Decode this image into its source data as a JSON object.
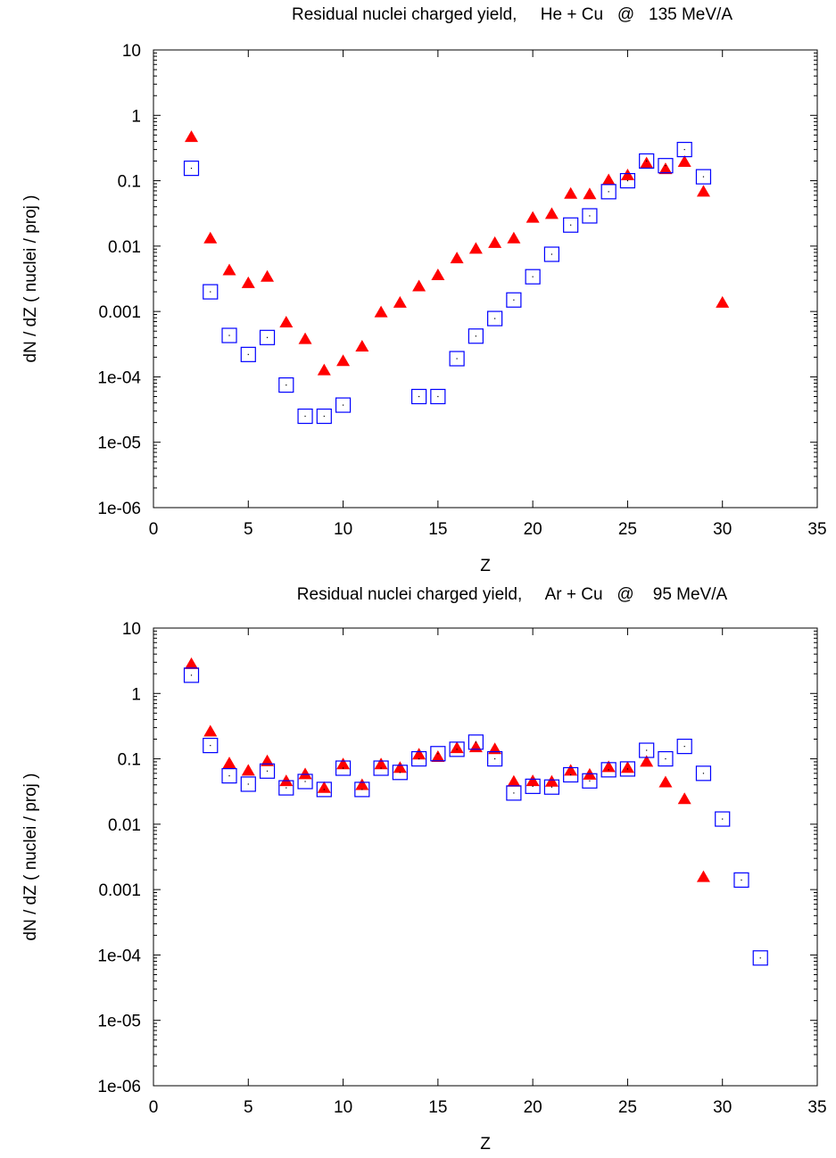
{
  "chart_data": [
    {
      "type": "scatter",
      "title": "Residual nuclei charged yield,     He + Cu   @   135 MeV/A",
      "xlabel": "Z",
      "ylabel": "dN / dZ ( nuclei / proj )",
      "xlim": [
        0,
        35
      ],
      "ylim": [
        1e-06,
        10
      ],
      "yscale": "log",
      "grid": false,
      "legend": "none",
      "x_ticks": [
        "0",
        "5",
        "10",
        "15",
        "20",
        "25",
        "30",
        "35"
      ],
      "x_tick_values": [
        0,
        5,
        10,
        15,
        20,
        25,
        30,
        35
      ],
      "y_ticks": [
        "1e-06",
        "1e-05",
        "1e-04",
        "0.001",
        "0.01",
        "0.1",
        "1",
        "10"
      ],
      "y_tick_values": [
        1e-06,
        1e-05,
        0.0001,
        0.001,
        0.01,
        0.1,
        1,
        10
      ],
      "series": [
        {
          "marker": "filled-triangle",
          "color": "#ff0000",
          "points": [
            [
              2,
              0.48
            ],
            [
              3,
              0.0135
            ],
            [
              4,
              0.0044
            ],
            [
              5,
              0.0028
            ],
            [
              6,
              0.0035
            ],
            [
              7,
              0.0007
            ],
            [
              8,
              0.00039
            ],
            [
              9,
              0.00013
            ],
            [
              10,
              0.00018
            ],
            [
              11,
              0.0003
            ],
            [
              12,
              0.001
            ],
            [
              13,
              0.0014
            ],
            [
              14,
              0.0025
            ],
            [
              15,
              0.0037
            ],
            [
              16,
              0.0067
            ],
            [
              17,
              0.0094
            ],
            [
              18,
              0.0115
            ],
            [
              19,
              0.0135
            ],
            [
              20,
              0.028
            ],
            [
              21,
              0.032
            ],
            [
              22,
              0.065
            ],
            [
              23,
              0.064
            ],
            [
              24,
              0.105
            ],
            [
              25,
              0.125
            ],
            [
              26,
              0.19
            ],
            [
              27,
              0.155
            ],
            [
              28,
              0.2
            ],
            [
              29,
              0.07
            ],
            [
              30,
              0.0014
            ]
          ]
        },
        {
          "marker": "open-square",
          "color": "#0000ff",
          "points": [
            [
              2,
              0.155
            ],
            [
              3,
              0.002
            ],
            [
              4,
              0.00043
            ],
            [
              5,
              0.00022
            ],
            [
              6,
              0.0004
            ],
            [
              7,
              7.5e-05
            ],
            [
              8,
              2.5e-05
            ],
            [
              9,
              2.5e-05
            ],
            [
              10,
              3.7e-05
            ],
            [
              14,
              5e-05
            ],
            [
              15,
              5e-05
            ],
            [
              16,
              0.00019
            ],
            [
              17,
              0.00042
            ],
            [
              18,
              0.00078
            ],
            [
              19,
              0.0015
            ],
            [
              20,
              0.0034
            ],
            [
              21,
              0.0075
            ],
            [
              22,
              0.021
            ],
            [
              23,
              0.029
            ],
            [
              24,
              0.068
            ],
            [
              25,
              0.1
            ],
            [
              26,
              0.2
            ],
            [
              27,
              0.17
            ],
            [
              28,
              0.3
            ],
            [
              29,
              0.115
            ]
          ]
        }
      ]
    },
    {
      "type": "scatter",
      "title": "Residual nuclei charged yield,     Ar + Cu   @    95 MeV/A",
      "xlabel": "Z",
      "ylabel": "dN / dZ ( nuclei / proj )",
      "xlim": [
        0,
        35
      ],
      "ylim": [
        1e-06,
        10
      ],
      "yscale": "log",
      "grid": false,
      "legend": "none",
      "x_ticks": [
        "0",
        "5",
        "10",
        "15",
        "20",
        "25",
        "30",
        "35"
      ],
      "x_tick_values": [
        0,
        5,
        10,
        15,
        20,
        25,
        30,
        35
      ],
      "y_ticks": [
        "1e-06",
        "1e-05",
        "1e-04",
        "0.001",
        "0.01",
        "0.1",
        "1",
        "10"
      ],
      "y_tick_values": [
        1e-06,
        1e-05,
        0.0001,
        0.001,
        0.01,
        0.1,
        1,
        10
      ],
      "series": [
        {
          "marker": "filled-triangle",
          "color": "#ff0000",
          "points": [
            [
              2,
              2.9
            ],
            [
              3,
              0.27
            ],
            [
              4,
              0.088
            ],
            [
              5,
              0.068
            ],
            [
              6,
              0.095
            ],
            [
              7,
              0.047
            ],
            [
              8,
              0.06
            ],
            [
              9,
              0.037
            ],
            [
              10,
              0.085
            ],
            [
              11,
              0.041
            ],
            [
              12,
              0.085
            ],
            [
              13,
              0.075
            ],
            [
              14,
              0.12
            ],
            [
              15,
              0.11
            ],
            [
              16,
              0.15
            ],
            [
              17,
              0.155
            ],
            [
              18,
              0.145
            ],
            [
              19,
              0.046
            ],
            [
              20,
              0.047
            ],
            [
              21,
              0.046
            ],
            [
              22,
              0.068
            ],
            [
              23,
              0.059
            ],
            [
              24,
              0.077
            ],
            [
              25,
              0.075
            ],
            [
              26,
              0.093
            ],
            [
              27,
              0.045
            ],
            [
              28,
              0.025
            ],
            [
              29,
              0.0016
            ]
          ]
        },
        {
          "marker": "open-square",
          "color": "#0000ff",
          "points": [
            [
              2,
              1.9
            ],
            [
              3,
              0.16
            ],
            [
              4,
              0.055
            ],
            [
              5,
              0.041
            ],
            [
              6,
              0.065
            ],
            [
              7,
              0.036
            ],
            [
              8,
              0.045
            ],
            [
              9,
              0.034
            ],
            [
              10,
              0.072
            ],
            [
              11,
              0.034
            ],
            [
              12,
              0.072
            ],
            [
              13,
              0.062
            ],
            [
              14,
              0.1
            ],
            [
              15,
              0.12
            ],
            [
              16,
              0.14
            ],
            [
              17,
              0.18
            ],
            [
              18,
              0.1
            ],
            [
              19,
              0.03
            ],
            [
              20,
              0.038
            ],
            [
              21,
              0.037
            ],
            [
              22,
              0.057
            ],
            [
              23,
              0.046
            ],
            [
              24,
              0.068
            ],
            [
              25,
              0.07
            ],
            [
              26,
              0.135
            ],
            [
              27,
              0.1
            ],
            [
              28,
              0.155
            ],
            [
              29,
              0.06
            ],
            [
              30,
              0.012
            ],
            [
              31,
              0.0014
            ],
            [
              32,
              9e-05
            ]
          ]
        }
      ]
    }
  ]
}
